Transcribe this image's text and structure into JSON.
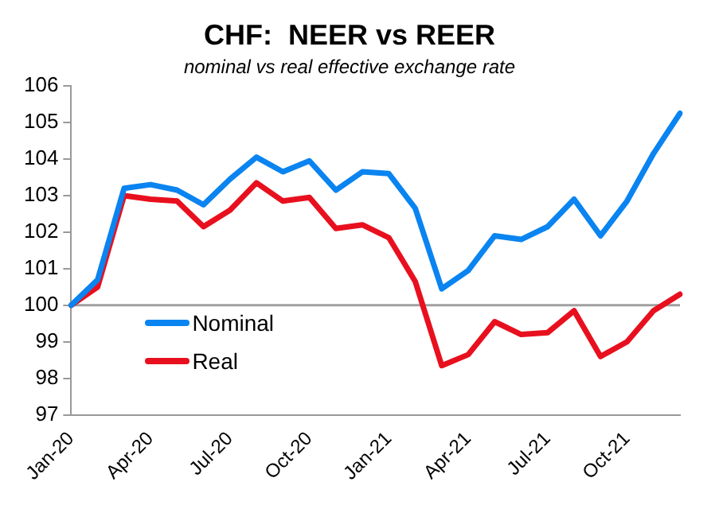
{
  "chart_data": {
    "type": "line",
    "title": "CHF:  NEER vs REER",
    "subtitle": "nominal vs real effective exchange rate",
    "categories": [
      "Jan-20",
      null,
      null,
      "Apr-20",
      null,
      null,
      "Jul-20",
      null,
      null,
      "Oct-20",
      null,
      null,
      "Jan-21",
      null,
      null,
      "Apr-21",
      null,
      null,
      "Jul-21",
      null,
      null,
      "Oct-21",
      null,
      null
    ],
    "series": [
      {
        "name": "Nominal",
        "color": "#0a84f0",
        "values": [
          100,
          100.7,
          103.2,
          103.3,
          103.15,
          102.75,
          103.45,
          104.05,
          103.65,
          103.95,
          103.15,
          103.65,
          103.6,
          102.65,
          100.45,
          100.95,
          101.9,
          101.8,
          102.15,
          102.9,
          101.9,
          102.85,
          104.15,
          105.25
        ]
      },
      {
        "name": "Real",
        "color": "#e8101e",
        "values": [
          100,
          100.5,
          103.0,
          102.9,
          102.85,
          102.15,
          102.6,
          103.35,
          102.85,
          102.95,
          102.1,
          102.2,
          101.85,
          100.65,
          98.35,
          98.65,
          99.55,
          99.2,
          99.25,
          99.85,
          98.6,
          99.0,
          99.85,
          100.3
        ]
      }
    ],
    "ylim": [
      97,
      106
    ],
    "yticks": [
      97,
      98,
      99,
      100,
      101,
      102,
      103,
      104,
      105,
      106
    ],
    "ref_lines": [
      {
        "axis": "y",
        "value": 100,
        "color": "#a0a0a0"
      }
    ],
    "grid": false,
    "legend": "bottom left",
    "marker": "none",
    "line_style": "solid"
  }
}
